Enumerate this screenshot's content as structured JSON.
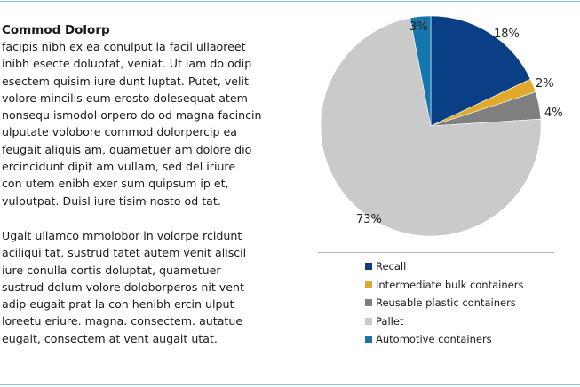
{
  "article": {
    "title": "Commod Dolorp",
    "paragraphs": [
      "facipis nibh ex ea conulput la facil ullaoreet\ninibh esecte doluptat, veniat. Ut lam do odip\nesectem quisim iure dunt luptat. Putet, velit\nvolore mincilis eum erosto dolesequat atem\nnonsequ ismodol orpero do od magna facincin\nulputate volobore commod dolorpercip ea\nfeugait aliquis am, quametuer am dolore dio\nercincidunt dipit am vullam, sed del iriure\ncon utem enibh exer sum quipsum ip et,\nvulputpat. Duisl iure tisim nosto od tat.",
      "Ugait ullamco mmolobor in volorpe rcidunt\naciliqui tat, sustrud tatet autem venit aliscil\niure conulla cortis doluptat, quametuer\nsustrud dolum volore doloborperos nit vent\nadip eugait prat la con henibh ercin ulput\nloreetu eriure. magna. consectem. autatue\neugait, consectem at vent augait utat."
    ]
  },
  "chart_data": {
    "type": "pie",
    "title": "",
    "slices": [
      {
        "label": "Recall",
        "value": 18,
        "display": "18%",
        "color": "#0a3f85"
      },
      {
        "label": "Intermediate bulk containers",
        "value": 2,
        "display": "2%",
        "color": "#e0a92b"
      },
      {
        "label": "Reusable plastic containers",
        "value": 4,
        "display": "4%",
        "color": "#7f7f7f"
      },
      {
        "label": "Pallet",
        "value": 73,
        "display": "73%",
        "color": "#cacaca"
      },
      {
        "label": "Automotive containers",
        "value": 3,
        "display": "3%",
        "color": "#1576ae"
      }
    ],
    "legend_position": "bottom"
  }
}
